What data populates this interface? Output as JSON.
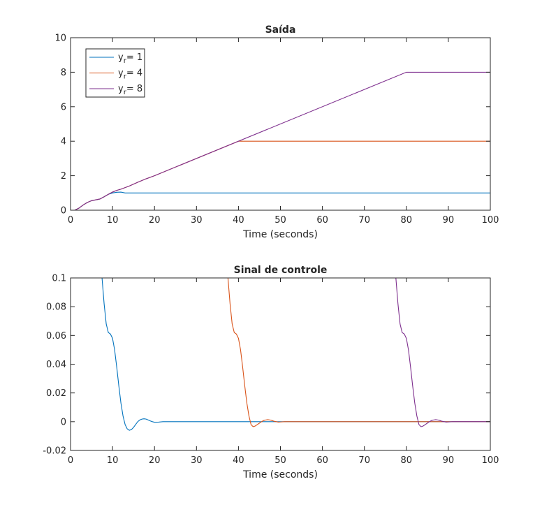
{
  "colors": {
    "series1": "#0072BD",
    "series2": "#D95319",
    "series3": "#7E2F8E",
    "axis": "#262626"
  },
  "chart_data": [
    {
      "type": "line",
      "title": "Saída",
      "xlabel": "Time (seconds)",
      "ylabel": "",
      "xlim": [
        0,
        100
      ],
      "ylim": [
        0,
        10
      ],
      "xticks": [
        "0",
        "10",
        "20",
        "30",
        "40",
        "50",
        "60",
        "70",
        "80",
        "90",
        "100"
      ],
      "yticks": [
        "0",
        "2",
        "4",
        "6",
        "8",
        "10"
      ],
      "legend": {
        "placement": "top-left",
        "entries": [
          {
            "base": "y",
            "sub": "r",
            "rest": "= 1"
          },
          {
            "base": "y",
            "sub": "r",
            "rest": "= 4"
          },
          {
            "base": "y",
            "sub": "r",
            "rest": "= 8"
          }
        ]
      },
      "series": [
        {
          "color": "#0072BD",
          "x": [
            0,
            1,
            2,
            3,
            4,
            5,
            6,
            7,
            8,
            9,
            10,
            11,
            12,
            13,
            100
          ],
          "y": [
            0,
            0,
            0.12,
            0.3,
            0.45,
            0.55,
            0.6,
            0.65,
            0.78,
            0.92,
            1.0,
            1.04,
            1.05,
            1.0,
            1.0
          ]
        },
        {
          "color": "#D95319",
          "x": [
            0,
            1,
            2,
            3,
            4,
            5,
            6,
            7,
            8,
            9,
            10,
            11,
            12,
            14,
            16,
            18,
            20,
            40,
            41,
            100
          ],
          "y": [
            0,
            0,
            0.12,
            0.3,
            0.45,
            0.55,
            0.6,
            0.65,
            0.78,
            0.92,
            1.05,
            1.15,
            1.22,
            1.4,
            1.62,
            1.82,
            2.0,
            4.0,
            4.0,
            4.0
          ]
        },
        {
          "color": "#7E2F8E",
          "x": [
            0,
            1,
            2,
            3,
            4,
            5,
            6,
            7,
            8,
            9,
            10,
            11,
            12,
            14,
            16,
            18,
            20,
            80,
            81,
            100
          ],
          "y": [
            0,
            0,
            0.12,
            0.3,
            0.45,
            0.55,
            0.6,
            0.65,
            0.78,
            0.92,
            1.05,
            1.15,
            1.22,
            1.4,
            1.62,
            1.82,
            2.0,
            8.0,
            8.0,
            8.0
          ]
        }
      ]
    },
    {
      "type": "line",
      "title": "Sinal de controle",
      "xlabel": "Time (seconds)",
      "ylabel": "",
      "xlim": [
        0,
        100
      ],
      "ylim": [
        -0.02,
        0.1
      ],
      "xticks": [
        "0",
        "10",
        "20",
        "30",
        "40",
        "50",
        "60",
        "70",
        "80",
        "90",
        "100"
      ],
      "yticks": [
        "-0.02",
        "0",
        "0.02",
        "0.04",
        "0.06",
        "0.08",
        "0.1"
      ],
      "series": [
        {
          "color": "#0072BD",
          "x": [
            0,
            7.5,
            8,
            8.5,
            9,
            9.5,
            10,
            10.5,
            11,
            11.5,
            12,
            12.5,
            13,
            13.5,
            14,
            14.5,
            15,
            15.5,
            16,
            16.5,
            17,
            17.5,
            18,
            18.5,
            19,
            19.5,
            20,
            21,
            22,
            23,
            100
          ],
          "y": [
            0.1,
            0.1,
            0.082,
            0.068,
            0.062,
            0.061,
            0.058,
            0.05,
            0.038,
            0.025,
            0.013,
            0.004,
            -0.002,
            -0.005,
            -0.006,
            -0.0055,
            -0.004,
            -0.002,
            0,
            0.0012,
            0.0018,
            0.002,
            0.0018,
            0.0012,
            0.0005,
            0,
            -0.0004,
            -0.0003,
            0,
            0,
            0
          ]
        },
        {
          "color": "#D95319",
          "x": [
            0,
            37.5,
            38,
            38.5,
            39,
            39.5,
            40,
            40.5,
            41,
            41.5,
            42,
            42.5,
            43,
            43.5,
            44,
            44.5,
            45,
            45.5,
            46,
            46.5,
            47,
            47.5,
            48,
            48.5,
            49,
            49.5,
            50,
            51,
            52,
            53,
            100
          ],
          "y": [
            0.1,
            0.1,
            0.082,
            0.068,
            0.062,
            0.061,
            0.058,
            0.05,
            0.038,
            0.025,
            0.013,
            0.004,
            -0.002,
            -0.0035,
            -0.003,
            -0.002,
            -0.001,
            0,
            0.0008,
            0.0012,
            0.0014,
            0.0012,
            0.0008,
            0.0003,
            0,
            -0.0003,
            -0.0002,
            0,
            0,
            0,
            0
          ]
        },
        {
          "color": "#7E2F8E",
          "x": [
            0,
            77.5,
            78,
            78.5,
            79,
            79.5,
            80,
            80.5,
            81,
            81.5,
            82,
            82.5,
            83,
            83.5,
            84,
            84.5,
            85,
            85.5,
            86,
            86.5,
            87,
            87.5,
            88,
            88.5,
            89,
            89.5,
            90,
            91,
            92,
            93,
            100
          ],
          "y": [
            0.1,
            0.1,
            0.082,
            0.068,
            0.062,
            0.061,
            0.058,
            0.05,
            0.038,
            0.025,
            0.013,
            0.004,
            -0.002,
            -0.0035,
            -0.003,
            -0.002,
            -0.001,
            0,
            0.0008,
            0.0012,
            0.0014,
            0.0012,
            0.0008,
            0.0003,
            0,
            -0.0003,
            -0.0002,
            0,
            0,
            0,
            0
          ]
        }
      ]
    }
  ]
}
